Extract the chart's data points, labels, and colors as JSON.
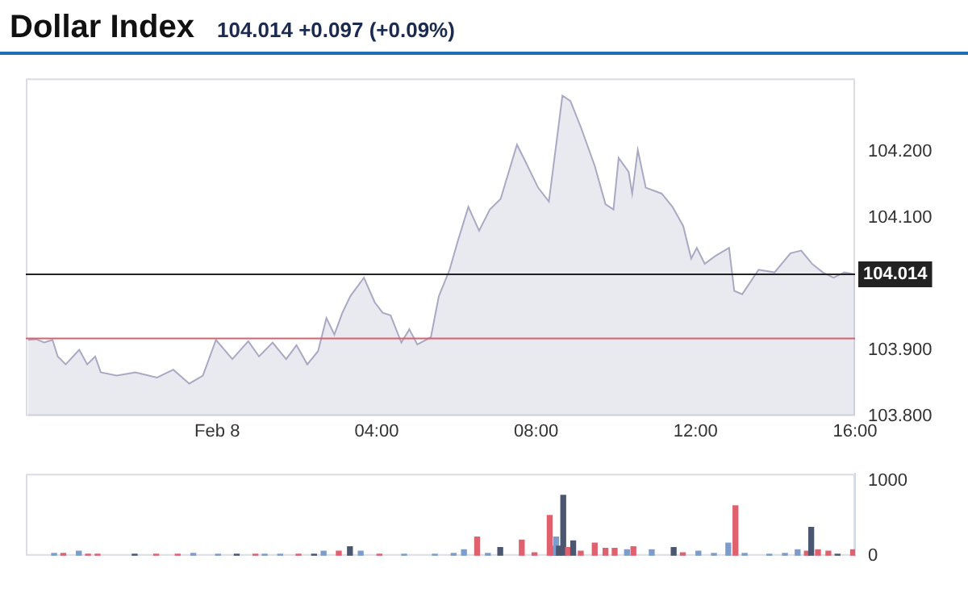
{
  "chart_data": [
    {
      "type": "area",
      "title": "Dollar Index",
      "subtitle": "104.014 +0.097 (+0.09%)",
      "color": "#a9a9c4",
      "x": [
        -4.74,
        -4.54,
        -4.34,
        -4.13,
        -4.0,
        -3.8,
        -3.46,
        -3.26,
        -3.06,
        -2.92,
        -2.52,
        -2.05,
        -1.51,
        -1.1,
        -0.7,
        -0.36,
        -0.03,
        0.38,
        0.78,
        1.05,
        1.39,
        1.73,
        1.99,
        2.26,
        2.53,
        2.74,
        2.94,
        3.14,
        3.34,
        3.68,
        3.95,
        4.15,
        4.35,
        4.62,
        4.82,
        5.02,
        5.36,
        5.56,
        5.83,
        6.03,
        6.3,
        6.57,
        6.84,
        7.11,
        7.52,
        7.72,
        8.05,
        8.32,
        8.66,
        8.86,
        9.13,
        9.47,
        9.74,
        9.94,
        10.07,
        10.32,
        10.41,
        10.55,
        10.75,
        11.15,
        11.42,
        11.69,
        11.89,
        12.03,
        12.23,
        12.5,
        12.84,
        12.97,
        13.17,
        13.58,
        13.98,
        14.38,
        14.65,
        14.92,
        15.19,
        15.46,
        15.73,
        16.0
      ],
      "values": [
        103.915,
        103.916,
        103.911,
        103.915,
        103.89,
        103.878,
        103.9,
        103.878,
        103.89,
        103.866,
        103.861,
        103.866,
        103.858,
        103.87,
        103.849,
        103.861,
        103.915,
        103.886,
        103.913,
        103.89,
        103.911,
        103.886,
        103.907,
        103.878,
        103.898,
        103.948,
        103.923,
        103.956,
        103.981,
        104.009,
        103.972,
        103.956,
        103.952,
        103.911,
        103.931,
        103.908,
        103.919,
        103.981,
        104.021,
        104.063,
        104.116,
        104.08,
        104.112,
        104.128,
        104.21,
        104.186,
        104.145,
        104.124,
        104.284,
        104.276,
        104.235,
        104.178,
        104.12,
        104.112,
        104.19,
        104.169,
        104.136,
        104.202,
        104.145,
        104.136,
        104.116,
        104.087,
        104.038,
        104.054,
        104.03,
        104.042,
        104.054,
        103.989,
        103.984,
        104.021,
        104.017,
        104.046,
        104.05,
        104.03,
        104.017,
        104.009,
        104.017,
        104.014
      ],
      "xlim": [
        -4.8,
        16.0
      ],
      "xticks": [
        {
          "value": 0,
          "label": "Feb 8"
        },
        {
          "value": 4,
          "label": "04:00"
        },
        {
          "value": 8,
          "label": "08:00"
        },
        {
          "value": 12,
          "label": "12:00"
        },
        {
          "value": 16,
          "label": "16:00"
        }
      ],
      "ylim": [
        103.8,
        104.31
      ],
      "yticks": [
        {
          "value": 103.8,
          "label": "103.800"
        },
        {
          "value": 103.9,
          "label": "103.900"
        },
        {
          "value": 104.1,
          "label": "104.100"
        },
        {
          "value": 104.2,
          "label": "104.200"
        }
      ],
      "ref_lines": [
        {
          "axis": "y",
          "value": 104.014,
          "label": "104.014",
          "color": "#222222"
        },
        {
          "axis": "y",
          "value": 103.917,
          "color": "#d9606e"
        }
      ]
    },
    {
      "type": "bar",
      "tick_labels": "y",
      "x": [
        -4.09,
        -3.86,
        -3.47,
        -3.24,
        -3.0,
        -2.07,
        -1.53,
        -0.99,
        -0.6,
        0.02,
        0.49,
        0.96,
        1.19,
        1.58,
        2.04,
        2.43,
        2.67,
        3.05,
        3.33,
        3.6,
        4.07,
        4.69,
        5.46,
        5.93,
        6.19,
        6.52,
        6.79,
        7.1,
        7.64,
        7.96,
        8.34,
        8.42,
        8.5,
        8.57,
        8.68,
        8.8,
        8.93,
        9.12,
        9.47,
        9.74,
        9.97,
        10.28,
        10.44,
        10.9,
        11.45,
        11.68,
        12.07,
        12.46,
        12.82,
        13.0,
        13.23,
        13.85,
        14.24,
        14.56,
        14.79,
        14.9,
        15.07,
        15.33,
        15.56,
        15.95
      ],
      "values": [
        30,
        30,
        60,
        20,
        20,
        20,
        20,
        20,
        30,
        20,
        20,
        20,
        20,
        20,
        20,
        20,
        60,
        60,
        120,
        60,
        20,
        20,
        20,
        30,
        80,
        250,
        30,
        110,
        210,
        40,
        540,
        130,
        250,
        130,
        810,
        110,
        200,
        60,
        170,
        100,
        100,
        80,
        120,
        80,
        110,
        40,
        60,
        30,
        170,
        670,
        30,
        20,
        30,
        80,
        60,
        380,
        80,
        60,
        20,
        80
      ],
      "colors": [
        "#7b9ccc",
        "#e0606e",
        "#7b9ccc",
        "#e0606e",
        "#e0606e",
        "#4b5670",
        "#e0606e",
        "#e0606e",
        "#7b9ccc",
        "#7b9ccc",
        "#4b5670",
        "#e0606e",
        "#7b9ccc",
        "#7b9ccc",
        "#e0606e",
        "#4b5670",
        "#7b9ccc",
        "#e0606e",
        "#4b5670",
        "#7b9ccc",
        "#e0606e",
        "#7b9ccc",
        "#7b9ccc",
        "#7b9ccc",
        "#7b9ccc",
        "#e0606e",
        "#7b9ccc",
        "#4b5670",
        "#e0606e",
        "#e0606e",
        "#e0606e",
        "#e0606e",
        "#7b9ccc",
        "#4b5670",
        "#4b5670",
        "#e0606e",
        "#4b5670",
        "#e0606e",
        "#e0606e",
        "#e0606e",
        "#e0606e",
        "#7b9ccc",
        "#e0606e",
        "#7b9ccc",
        "#4b5670",
        "#e0606e",
        "#7b9ccc",
        "#7b9ccc",
        "#7b9ccc",
        "#e0606e",
        "#7b9ccc",
        "#7b9ccc",
        "#7b9ccc",
        "#7b9ccc",
        "#e0606e",
        "#4b5670",
        "#e0606e",
        "#e0606e",
        "#4b5670",
        "#e0606e"
      ],
      "xlim": [
        -4.8,
        16.0
      ],
      "ylim": [
        0,
        1100
      ],
      "yticks": [
        0,
        1000
      ]
    }
  ]
}
